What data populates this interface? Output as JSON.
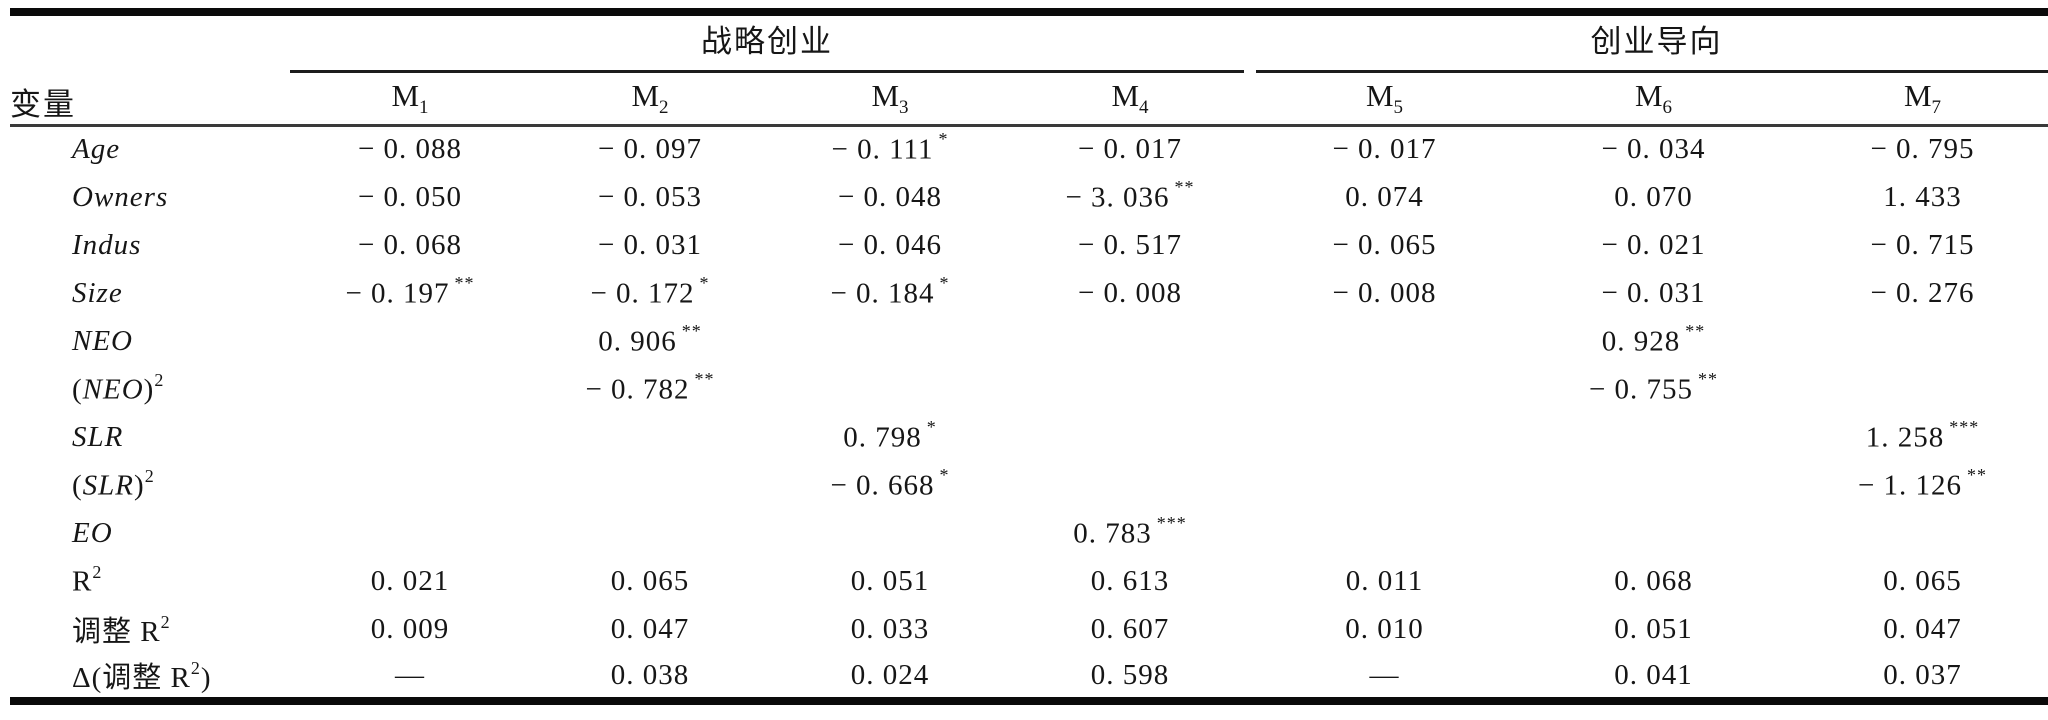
{
  "table": {
    "var_header": "变量",
    "groups": [
      {
        "label": "战略创业",
        "span": 4
      },
      {
        "label": "创业导向",
        "span": 3
      }
    ],
    "models": [
      {
        "m": "M",
        "sub": "1"
      },
      {
        "m": "M",
        "sub": "2"
      },
      {
        "m": "M",
        "sub": "3"
      },
      {
        "m": "M",
        "sub": "4"
      },
      {
        "m": "M",
        "sub": "5"
      },
      {
        "m": "M",
        "sub": "6"
      },
      {
        "m": "M",
        "sub": "7"
      }
    ],
    "rows": [
      {
        "label": [
          {
            "t": "Age",
            "i": true
          }
        ],
        "cells": [
          {
            "v": "− 0. 088"
          },
          {
            "v": "− 0. 097"
          },
          {
            "v": "− 0. 111",
            "s": "*"
          },
          {
            "v": "− 0. 017"
          },
          {
            "v": "− 0. 017"
          },
          {
            "v": "− 0. 034"
          },
          {
            "v": "− 0. 795"
          }
        ]
      },
      {
        "label": [
          {
            "t": "Owners",
            "i": true
          }
        ],
        "cells": [
          {
            "v": "− 0. 050"
          },
          {
            "v": "− 0. 053"
          },
          {
            "v": "− 0. 048"
          },
          {
            "v": "− 3. 036",
            "s": "**"
          },
          {
            "v": "0. 074"
          },
          {
            "v": "0. 070"
          },
          {
            "v": "1. 433"
          }
        ]
      },
      {
        "label": [
          {
            "t": "Indus",
            "i": true
          }
        ],
        "cells": [
          {
            "v": "− 0. 068"
          },
          {
            "v": "− 0. 031"
          },
          {
            "v": "− 0. 046"
          },
          {
            "v": "− 0. 517"
          },
          {
            "v": "− 0. 065"
          },
          {
            "v": "− 0. 021"
          },
          {
            "v": "− 0. 715"
          }
        ]
      },
      {
        "label": [
          {
            "t": "Size",
            "i": true
          }
        ],
        "cells": [
          {
            "v": "− 0. 197",
            "s": "**"
          },
          {
            "v": "− 0. 172",
            "s": "*"
          },
          {
            "v": "− 0. 184",
            "s": "*"
          },
          {
            "v": "− 0. 008"
          },
          {
            "v": "− 0. 008"
          },
          {
            "v": "− 0. 031"
          },
          {
            "v": "− 0. 276"
          }
        ]
      },
      {
        "label": [
          {
            "t": "NEO",
            "i": true
          }
        ],
        "cells": [
          null,
          {
            "v": "0. 906",
            "s": "**"
          },
          null,
          null,
          null,
          {
            "v": "0. 928",
            "s": "**"
          },
          null
        ]
      },
      {
        "label": [
          {
            "t": "("
          },
          {
            "t": "NEO",
            "i": true
          },
          {
            "t": ")"
          },
          {
            "t": "2",
            "sup": true
          }
        ],
        "cells": [
          null,
          {
            "v": "− 0. 782",
            "s": "**"
          },
          null,
          null,
          null,
          {
            "v": "− 0. 755",
            "s": "**"
          },
          null
        ]
      },
      {
        "label": [
          {
            "t": "SLR",
            "i": true
          }
        ],
        "cells": [
          null,
          null,
          {
            "v": "0. 798",
            "s": "*"
          },
          null,
          null,
          null,
          {
            "v": "1. 258",
            "s": "***"
          }
        ]
      },
      {
        "label": [
          {
            "t": "("
          },
          {
            "t": "SLR",
            "i": true
          },
          {
            "t": ")"
          },
          {
            "t": "2",
            "sup": true
          }
        ],
        "cells": [
          null,
          null,
          {
            "v": "− 0. 668",
            "s": "*"
          },
          null,
          null,
          null,
          {
            "v": "− 1. 126",
            "s": "**"
          }
        ]
      },
      {
        "label": [
          {
            "t": "EO",
            "i": true
          }
        ],
        "cells": [
          null,
          null,
          null,
          {
            "v": "0. 783",
            "s": "***"
          },
          null,
          null,
          null
        ]
      },
      {
        "label": [
          {
            "t": "R"
          },
          {
            "t": "2",
            "sup": true
          }
        ],
        "cells": [
          {
            "v": "0. 021"
          },
          {
            "v": "0. 065"
          },
          {
            "v": "0. 051"
          },
          {
            "v": "0. 613"
          },
          {
            "v": "0. 011"
          },
          {
            "v": "0. 068"
          },
          {
            "v": "0. 065"
          }
        ]
      },
      {
        "label": [
          {
            "t": "调整 R"
          },
          {
            "t": "2",
            "sup": true
          }
        ],
        "cells": [
          {
            "v": "0. 009"
          },
          {
            "v": "0. 047"
          },
          {
            "v": "0. 033"
          },
          {
            "v": "0. 607"
          },
          {
            "v": "0. 010"
          },
          {
            "v": "0. 051"
          },
          {
            "v": "0. 047"
          }
        ]
      },
      {
        "label": [
          {
            "t": "Δ(调整 R"
          },
          {
            "t": "2",
            "sup": true
          },
          {
            "t": ")"
          }
        ],
        "cells": [
          {
            "v": "—"
          },
          {
            "v": "0. 038"
          },
          {
            "v": "0. 024"
          },
          {
            "v": "0. 598"
          },
          {
            "v": "—"
          },
          {
            "v": "0. 041"
          },
          {
            "v": "0. 037"
          }
        ]
      }
    ]
  }
}
